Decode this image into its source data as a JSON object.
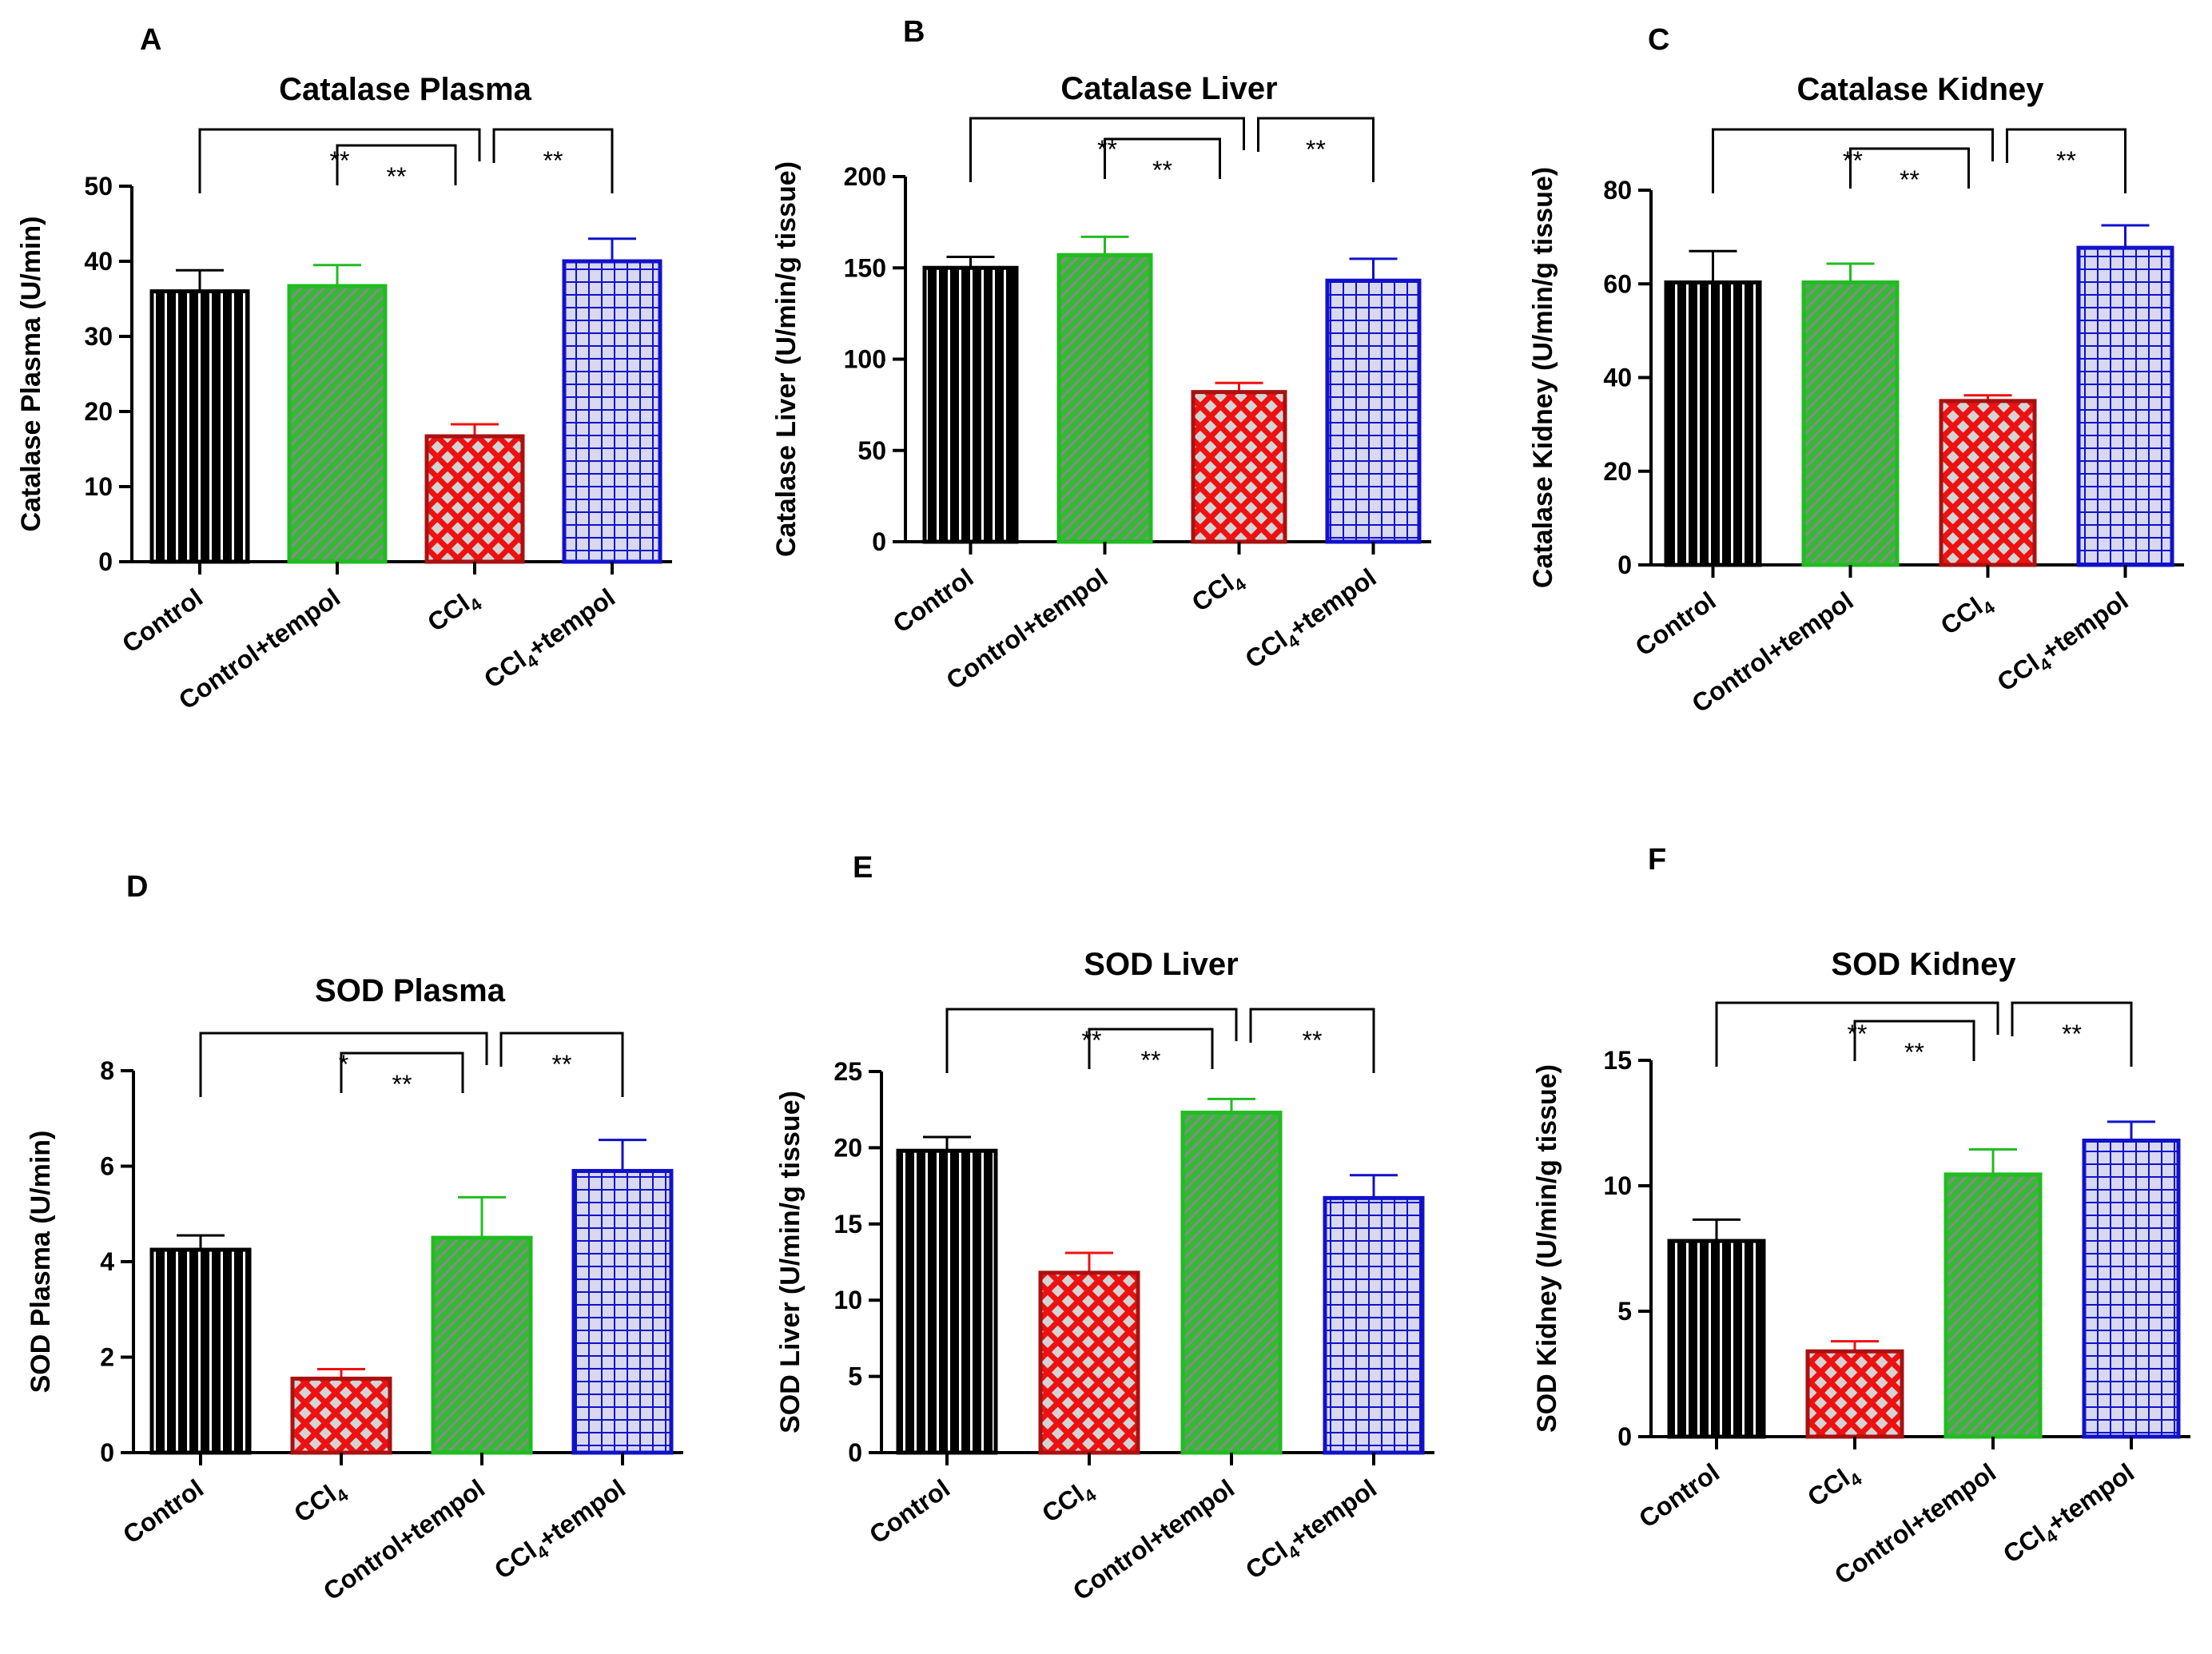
{
  "colors": {
    "black": "#000000",
    "green": "#22bb22",
    "greenDark": "#1a8a1a",
    "red": "#ee1111",
    "redDark": "#aa1111",
    "blue": "#1111cc",
    "blueFill": "#d8d8ee"
  },
  "chart_data": [
    {
      "type": "bar",
      "panel": "A",
      "title": "Catalase Plasma",
      "ylabel": "Catalase Plasma (U/min)",
      "ylim": [
        0,
        50
      ],
      "yticks": [
        "0",
        "10",
        "20",
        "30",
        "40",
        "50"
      ],
      "categories": [
        "Control",
        "Control+tempol",
        "CCl4",
        "CCl4+tempol"
      ],
      "category_labels": [
        {
          "main": "Control"
        },
        {
          "main": "Control+tempol"
        },
        {
          "main": "CCl",
          "sub": "4"
        },
        {
          "main": "CCl",
          "sub": "4",
          "suffix": "+tempol"
        }
      ],
      "styles": [
        "black",
        "green",
        "red",
        "blue"
      ],
      "values": [
        36,
        36.7,
        16.7,
        40
      ],
      "errors": [
        2.8,
        2.8,
        1.6,
        3
      ],
      "significance": [
        {
          "from": 0,
          "to": 2,
          "label": "**",
          "level": 2
        },
        {
          "from": 1,
          "to": 2,
          "label": "**",
          "level": 1
        },
        {
          "from": 2,
          "to": 3,
          "label": "**",
          "level": 2
        }
      ]
    },
    {
      "type": "bar",
      "panel": "B",
      "title": "Catalase Liver",
      "ylabel": "Catalase Liver (U/min/g tissue)",
      "ylim": [
        0,
        200
      ],
      "yticks": [
        "0",
        "50",
        "100",
        "150",
        "200"
      ],
      "categories": [
        "Control",
        "Control+tempol",
        "CCl4",
        "CCl4+tempol"
      ],
      "category_labels": [
        {
          "main": "Control"
        },
        {
          "main": "Control+tempol"
        },
        {
          "main": "CCl",
          "sub": "4"
        },
        {
          "main": "CCl",
          "sub": "4",
          "suffix": "+tempol"
        }
      ],
      "styles": [
        "black",
        "green",
        "red",
        "blue"
      ],
      "values": [
        150,
        157,
        82,
        143
      ],
      "errors": [
        6,
        10,
        5,
        12
      ],
      "significance": [
        {
          "from": 0,
          "to": 2,
          "label": "**",
          "level": 2
        },
        {
          "from": 1,
          "to": 2,
          "label": "**",
          "level": 1
        },
        {
          "from": 2,
          "to": 3,
          "label": "**",
          "level": 2
        }
      ]
    },
    {
      "type": "bar",
      "panel": "C",
      "title": "Catalase Kidney",
      "ylabel": "Catalase Kidney (U/min/g tissue)",
      "ylim": [
        0,
        80
      ],
      "yticks": [
        "0",
        "20",
        "40",
        "60",
        "80"
      ],
      "categories": [
        "Control",
        "Control+tempol",
        "CCl4",
        "CCl4+tempol"
      ],
      "category_labels": [
        {
          "main": "Control"
        },
        {
          "main": "Control+tempol"
        },
        {
          "main": "CCl",
          "sub": "4"
        },
        {
          "main": "CCl",
          "sub": "4",
          "suffix": "+tempol"
        }
      ],
      "styles": [
        "black",
        "green",
        "red",
        "blue"
      ],
      "values": [
        60.3,
        60.3,
        35,
        67.7
      ],
      "errors": [
        6.7,
        4,
        1.2,
        4.8
      ],
      "significance": [
        {
          "from": 0,
          "to": 2,
          "label": "**",
          "level": 2
        },
        {
          "from": 1,
          "to": 2,
          "label": "**",
          "level": 1
        },
        {
          "from": 2,
          "to": 3,
          "label": "**",
          "level": 2
        }
      ]
    },
    {
      "type": "bar",
      "panel": "D",
      "title": "SOD Plasma",
      "ylabel": "SOD Plasma (U/min)",
      "ylim": [
        0,
        8
      ],
      "yticks": [
        "0",
        "2",
        "4",
        "6",
        "8"
      ],
      "categories": [
        "Control",
        "CCl4",
        "Control+tempol",
        "CCl4+tempol"
      ],
      "category_labels": [
        {
          "main": "Control"
        },
        {
          "main": "CCl",
          "sub": "4"
        },
        {
          "main": "Control+tempol"
        },
        {
          "main": "CCl",
          "sub": "4",
          "suffix": "+tempol"
        }
      ],
      "styles": [
        "black",
        "red",
        "green",
        "blue"
      ],
      "values": [
        4.25,
        1.55,
        4.5,
        5.9
      ],
      "errors": [
        0.3,
        0.2,
        0.85,
        0.65
      ],
      "significance": [
        {
          "from": 0,
          "to": 2,
          "label": "*",
          "level": 2
        },
        {
          "from": 1,
          "to": 2,
          "label": "**",
          "level": 1
        },
        {
          "from": 2,
          "to": 3,
          "label": "**",
          "level": 2
        }
      ]
    },
    {
      "type": "bar",
      "panel": "E",
      "title": "SOD Liver",
      "ylabel": "SOD Liver (U/min/g tissue)",
      "ylim": [
        0,
        25
      ],
      "yticks": [
        "0",
        "5",
        "10",
        "15",
        "20",
        "25"
      ],
      "categories": [
        "Control",
        "CCl4",
        "Control+tempol",
        "CCl4+tempol"
      ],
      "category_labels": [
        {
          "main": "Control"
        },
        {
          "main": "CCl",
          "sub": "4"
        },
        {
          "main": "Control+tempol"
        },
        {
          "main": "CCl",
          "sub": "4",
          "suffix": "+tempol"
        }
      ],
      "styles": [
        "black",
        "red",
        "green",
        "blue"
      ],
      "values": [
        19.8,
        11.8,
        22.3,
        16.7
      ],
      "errors": [
        0.9,
        1.3,
        0.9,
        1.5
      ],
      "significance": [
        {
          "from": 0,
          "to": 2,
          "label": "**",
          "level": 2
        },
        {
          "from": 1,
          "to": 2,
          "label": "**",
          "level": 1
        },
        {
          "from": 2,
          "to": 3,
          "label": "**",
          "level": 2
        }
      ]
    },
    {
      "type": "bar",
      "panel": "F",
      "title": "SOD Kidney",
      "ylabel": "SOD Kidney (U/min/g tissue)",
      "ylim": [
        0,
        15
      ],
      "yticks": [
        "0",
        "5",
        "10",
        "15"
      ],
      "categories": [
        "Control",
        "CCl4",
        "Control+tempol",
        "CCl4+tempol"
      ],
      "category_labels": [
        {
          "main": "Control"
        },
        {
          "main": "CCl",
          "sub": "4"
        },
        {
          "main": "Control+tempol"
        },
        {
          "main": "CCl",
          "sub": "4",
          "suffix": "+tempol"
        }
      ],
      "styles": [
        "black",
        "red",
        "green",
        "blue"
      ],
      "values": [
        7.8,
        3.4,
        10.45,
        11.8
      ],
      "errors": [
        0.85,
        0.4,
        1.0,
        0.75
      ],
      "significance": [
        {
          "from": 0,
          "to": 2,
          "label": "**",
          "level": 2
        },
        {
          "from": 1,
          "to": 2,
          "label": "**",
          "level": 1
        },
        {
          "from": 2,
          "to": 3,
          "label": "**",
          "level": 2
        }
      ]
    }
  ]
}
